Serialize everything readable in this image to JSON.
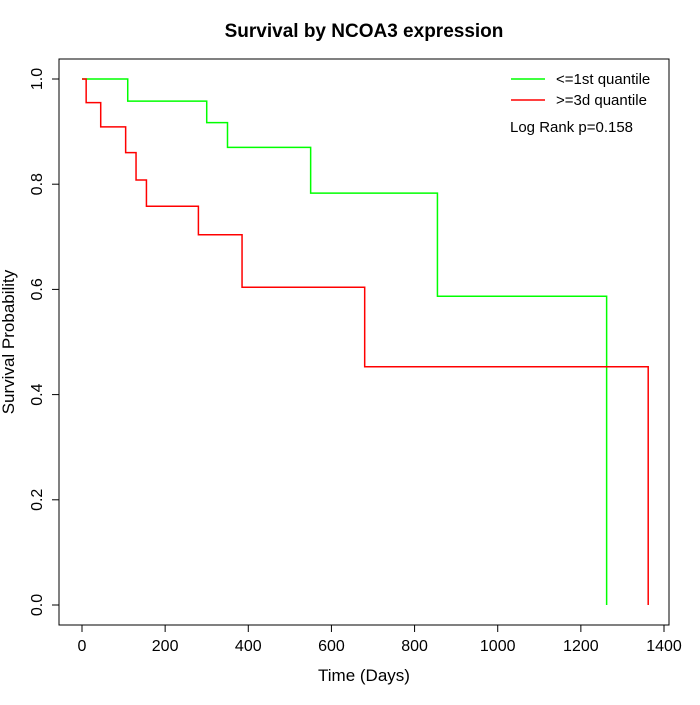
{
  "chart_data": {
    "type": "line",
    "subtype": "kaplan-meier step",
    "title": "Survival by NCOA3 expression",
    "xlabel": "Time (Days)",
    "ylabel": "Survival Probability",
    "xlim": [
      0,
      1400
    ],
    "ylim": [
      0,
      1
    ],
    "x_ticks": [
      "0",
      "200",
      "400",
      "600",
      "800",
      "1000",
      "1200",
      "1400"
    ],
    "y_ticks": [
      "0.0",
      "0.2",
      "0.4",
      "0.6",
      "0.8",
      "1.0"
    ],
    "grid": false,
    "legend_position": "top-right",
    "annotation": "Log Rank p=0.158",
    "series": [
      {
        "name": "<=1st quantile",
        "color": "#00ff00",
        "x": [
          0,
          110,
          300,
          350,
          550,
          855,
          1262,
          1262
        ],
        "y": [
          1.0,
          0.958,
          0.917,
          0.87,
          0.783,
          0.587,
          0.587,
          0.0
        ]
      },
      {
        "name": ">=3d quantile",
        "color": "#ff0000",
        "x": [
          0,
          10,
          45,
          105,
          130,
          155,
          280,
          385,
          680,
          1362,
          1362
        ],
        "y": [
          1.0,
          0.955,
          0.909,
          0.86,
          0.808,
          0.758,
          0.704,
          0.604,
          0.453,
          0.453,
          0.0
        ]
      }
    ]
  }
}
